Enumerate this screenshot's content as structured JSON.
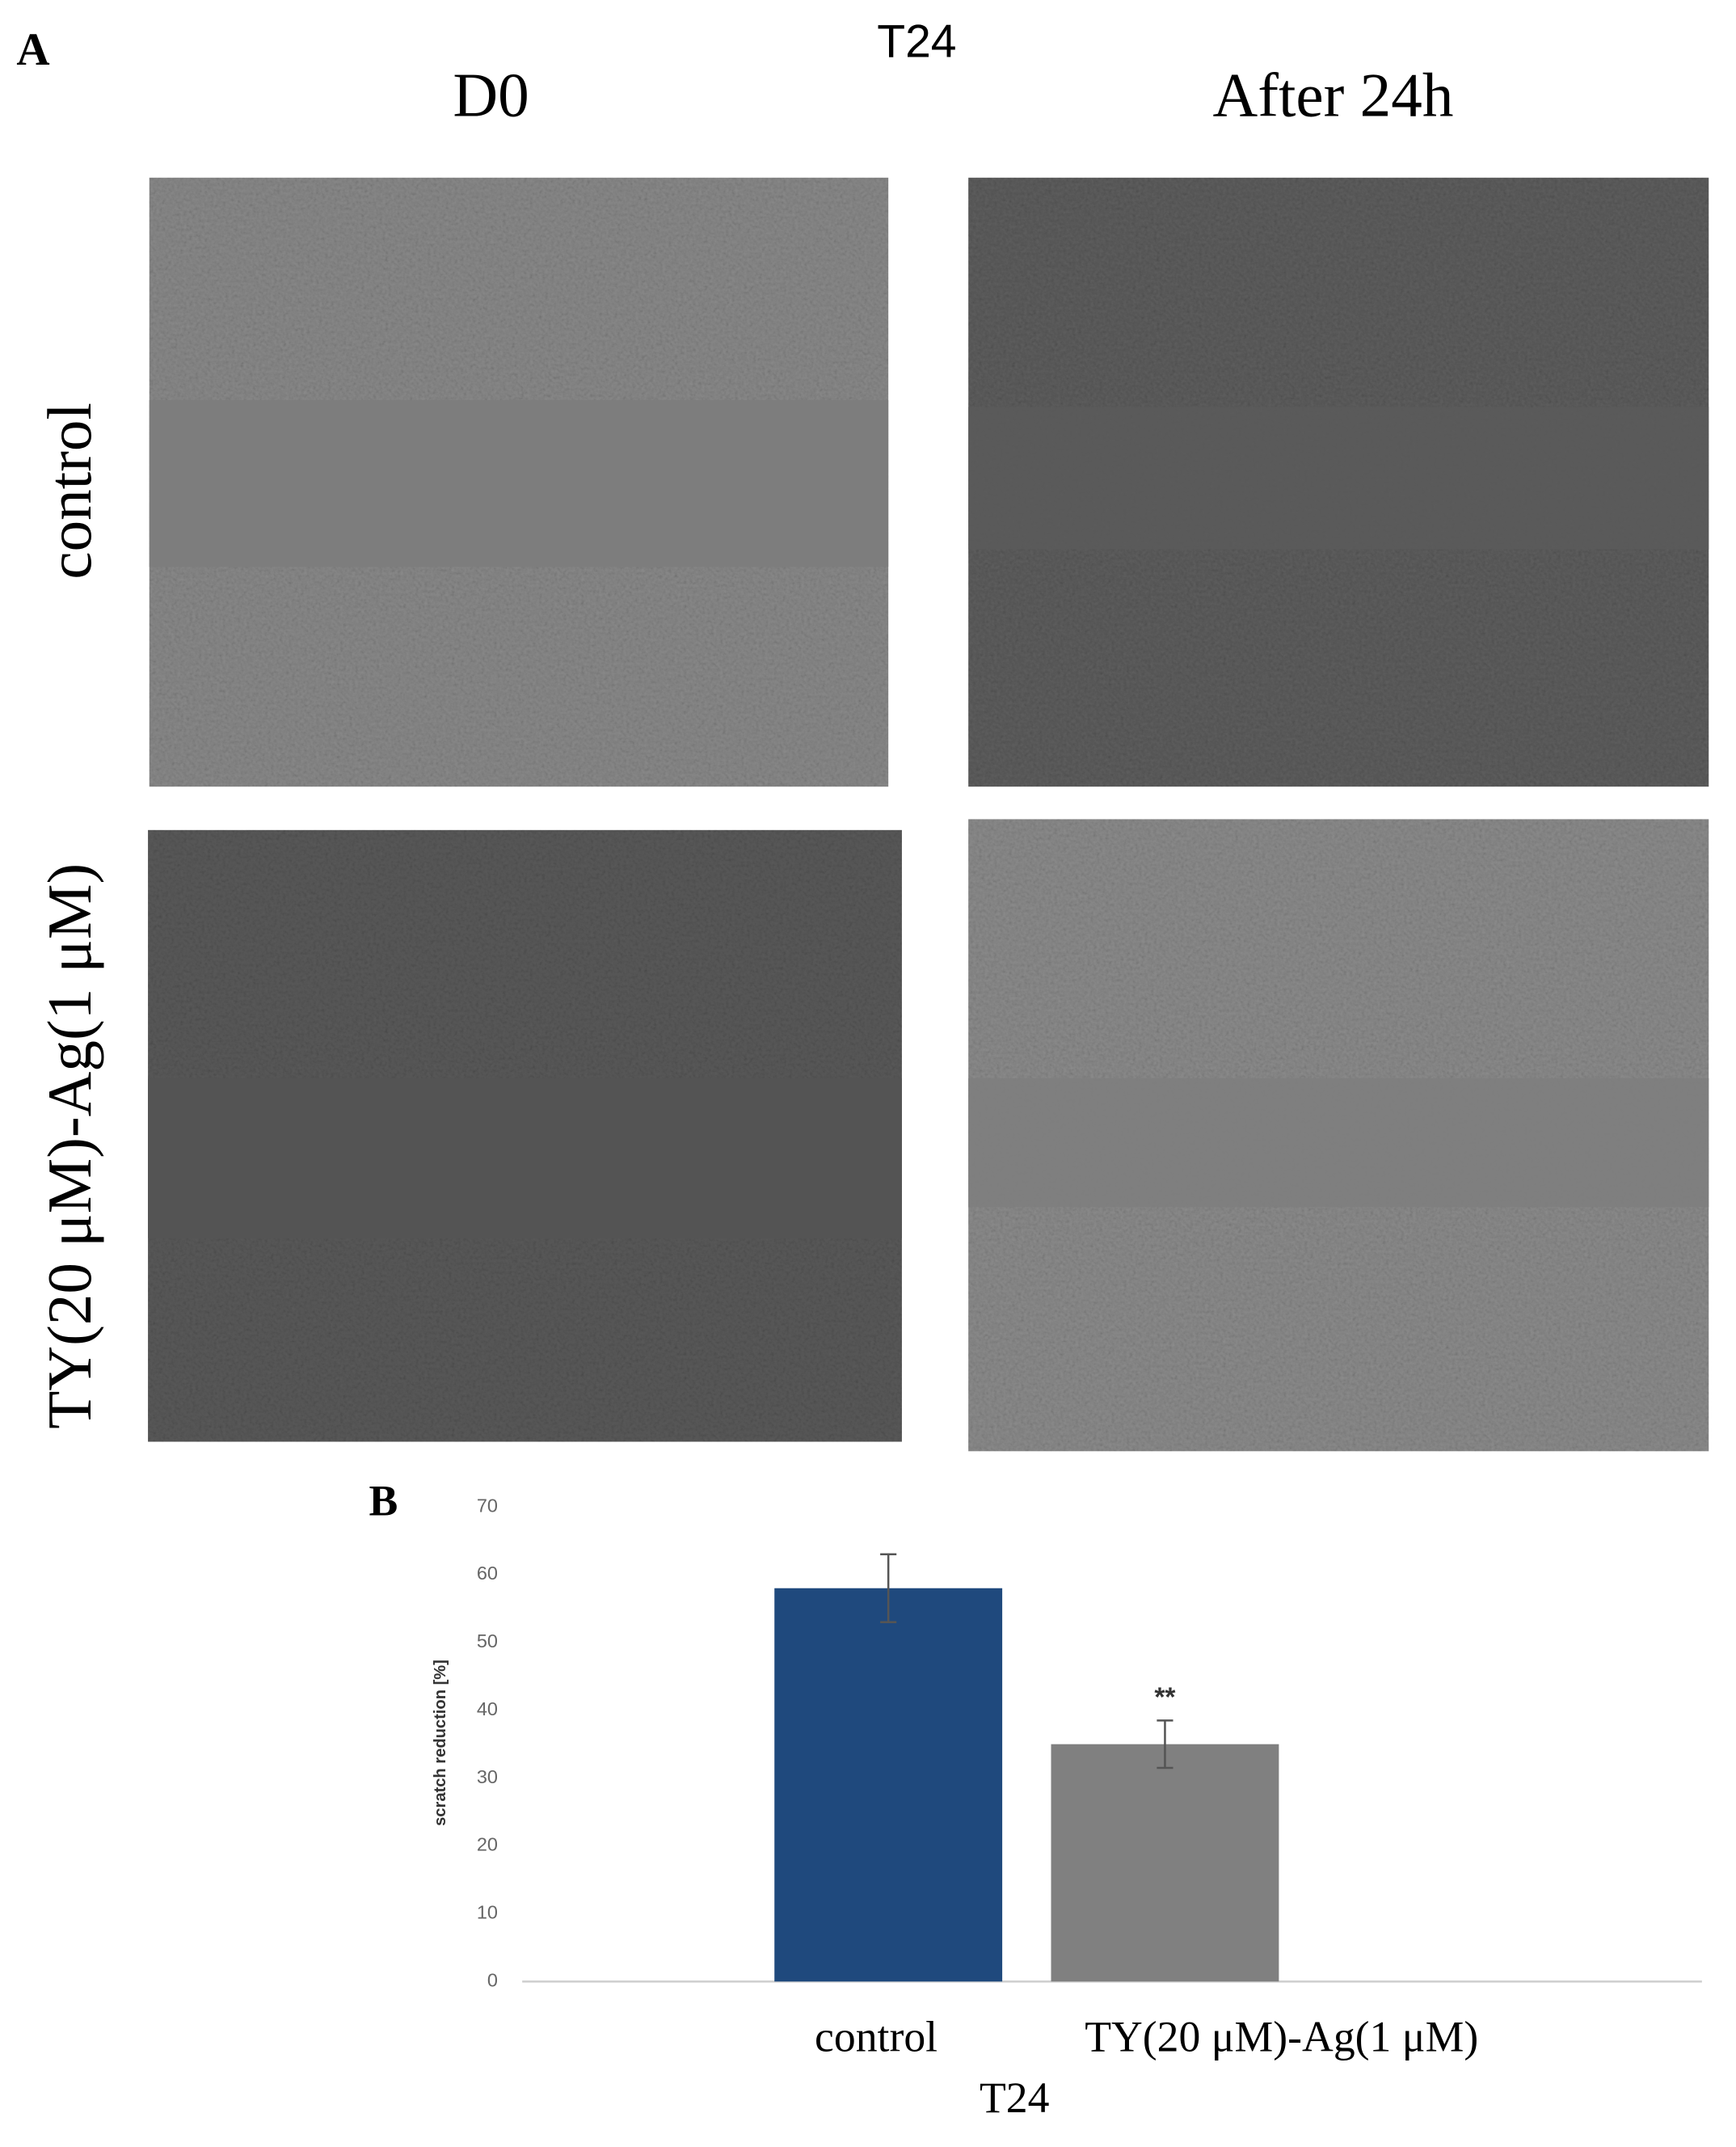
{
  "panel_a": {
    "label": "A",
    "title": "T24",
    "columns": [
      "D0",
      "After 24h"
    ],
    "rows": [
      "control",
      "TY(20 μM)-Ag(1 μM)"
    ]
  },
  "chart_data": {
    "type": "bar",
    "panel_label": "B",
    "ylabel": "scratch reduction [%]",
    "xlabel": "T24",
    "categories": [
      "control",
      "TY(20 μM)-Ag(1 μM)"
    ],
    "values": [
      58,
      35
    ],
    "errors": [
      5,
      3.5
    ],
    "colors": [
      "#1f497d",
      "#808080"
    ],
    "significance": [
      null,
      "**"
    ],
    "ylim": [
      0,
      70
    ],
    "yticks": [
      0,
      10,
      20,
      30,
      40,
      50,
      60,
      70
    ]
  }
}
